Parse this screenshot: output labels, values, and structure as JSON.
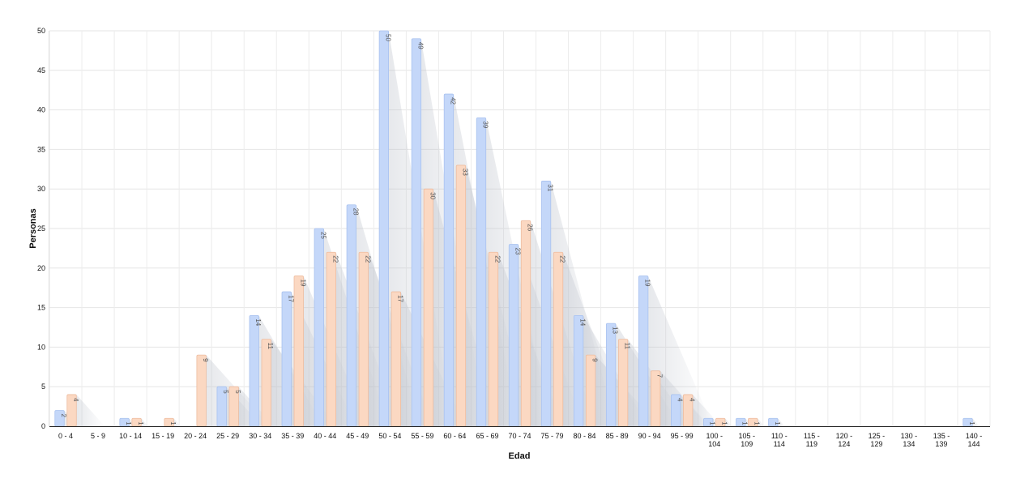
{
  "chart_data": {
    "type": "bar",
    "xlabel": "Edad",
    "ylabel": "Personas",
    "ylim": [
      0,
      50
    ],
    "ytick_step": 5,
    "grid": true,
    "categories": [
      [
        "0 - 4"
      ],
      [
        "5 - 9"
      ],
      [
        "10 - 14"
      ],
      [
        "15 - 19"
      ],
      [
        "20 - 24"
      ],
      [
        "25 - 29"
      ],
      [
        "30 - 34"
      ],
      [
        "35 - 39"
      ],
      [
        "40 - 44"
      ],
      [
        "45 - 49"
      ],
      [
        "50 - 54"
      ],
      [
        "55 - 59"
      ],
      [
        "60 - 64"
      ],
      [
        "65 - 69"
      ],
      [
        "70 - 74"
      ],
      [
        "75 - 79"
      ],
      [
        "80 - 84"
      ],
      [
        "85 - 89"
      ],
      [
        "90 - 94"
      ],
      [
        "95 - 99"
      ],
      [
        "100 -",
        "104"
      ],
      [
        "105 -",
        "109"
      ],
      [
        "110 -",
        "114"
      ],
      [
        "115 -",
        "119"
      ],
      [
        "120 -",
        "124"
      ],
      [
        "125 -",
        "129"
      ],
      [
        "130 -",
        "134"
      ],
      [
        "135 -",
        "139"
      ],
      [
        "140 -",
        "144"
      ]
    ],
    "series": [
      {
        "color": "#c4d7f9",
        "stroke": "#a9c2ef",
        "values": [
          2,
          0,
          1,
          0,
          0,
          5,
          14,
          17,
          25,
          28,
          50,
          49,
          42,
          39,
          23,
          31,
          14,
          13,
          19,
          4,
          1,
          1,
          1,
          0,
          0,
          0,
          0,
          0,
          1
        ]
      },
      {
        "color": "#fbd8c2",
        "stroke": "#eebc9f",
        "values": [
          4,
          0,
          1,
          1,
          9,
          5,
          11,
          19,
          22,
          22,
          17,
          30,
          33,
          22,
          26,
          22,
          9,
          11,
          7,
          4,
          1,
          1,
          0,
          0,
          0,
          0,
          0,
          0,
          0
        ]
      }
    ]
  }
}
